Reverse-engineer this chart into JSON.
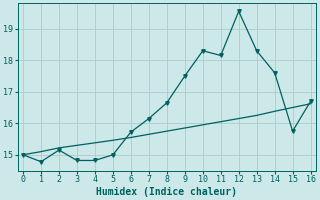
{
  "xlabel": "Humidex (Indice chaleur)",
  "x": [
    0,
    1,
    2,
    3,
    4,
    5,
    6,
    7,
    8,
    9,
    10,
    11,
    12,
    13,
    14,
    15,
    16
  ],
  "line1_y": [
    15.0,
    14.78,
    15.15,
    14.82,
    14.82,
    15.0,
    15.72,
    16.15,
    16.65,
    17.5,
    18.3,
    18.15,
    19.55,
    18.3,
    17.6,
    15.75,
    16.7
  ],
  "line2_y": [
    15.0,
    15.1,
    15.22,
    15.3,
    15.38,
    15.46,
    15.55,
    15.65,
    15.75,
    15.85,
    15.95,
    16.05,
    16.15,
    16.25,
    16.38,
    16.5,
    16.62
  ],
  "line_color": "#006060",
  "bg_color": "#cce8e8",
  "grid_color": "#aacccc",
  "ylim": [
    14.5,
    19.8
  ],
  "xlim": [
    -0.3,
    16.3
  ],
  "yticks": [
    15,
    16,
    17,
    18,
    19
  ],
  "xticks": [
    0,
    1,
    2,
    3,
    4,
    5,
    6,
    7,
    8,
    9,
    10,
    11,
    12,
    13,
    14,
    15,
    16
  ],
  "marker_size": 2.5,
  "linewidth": 0.9,
  "tick_fontsize": 6,
  "xlabel_fontsize": 7
}
